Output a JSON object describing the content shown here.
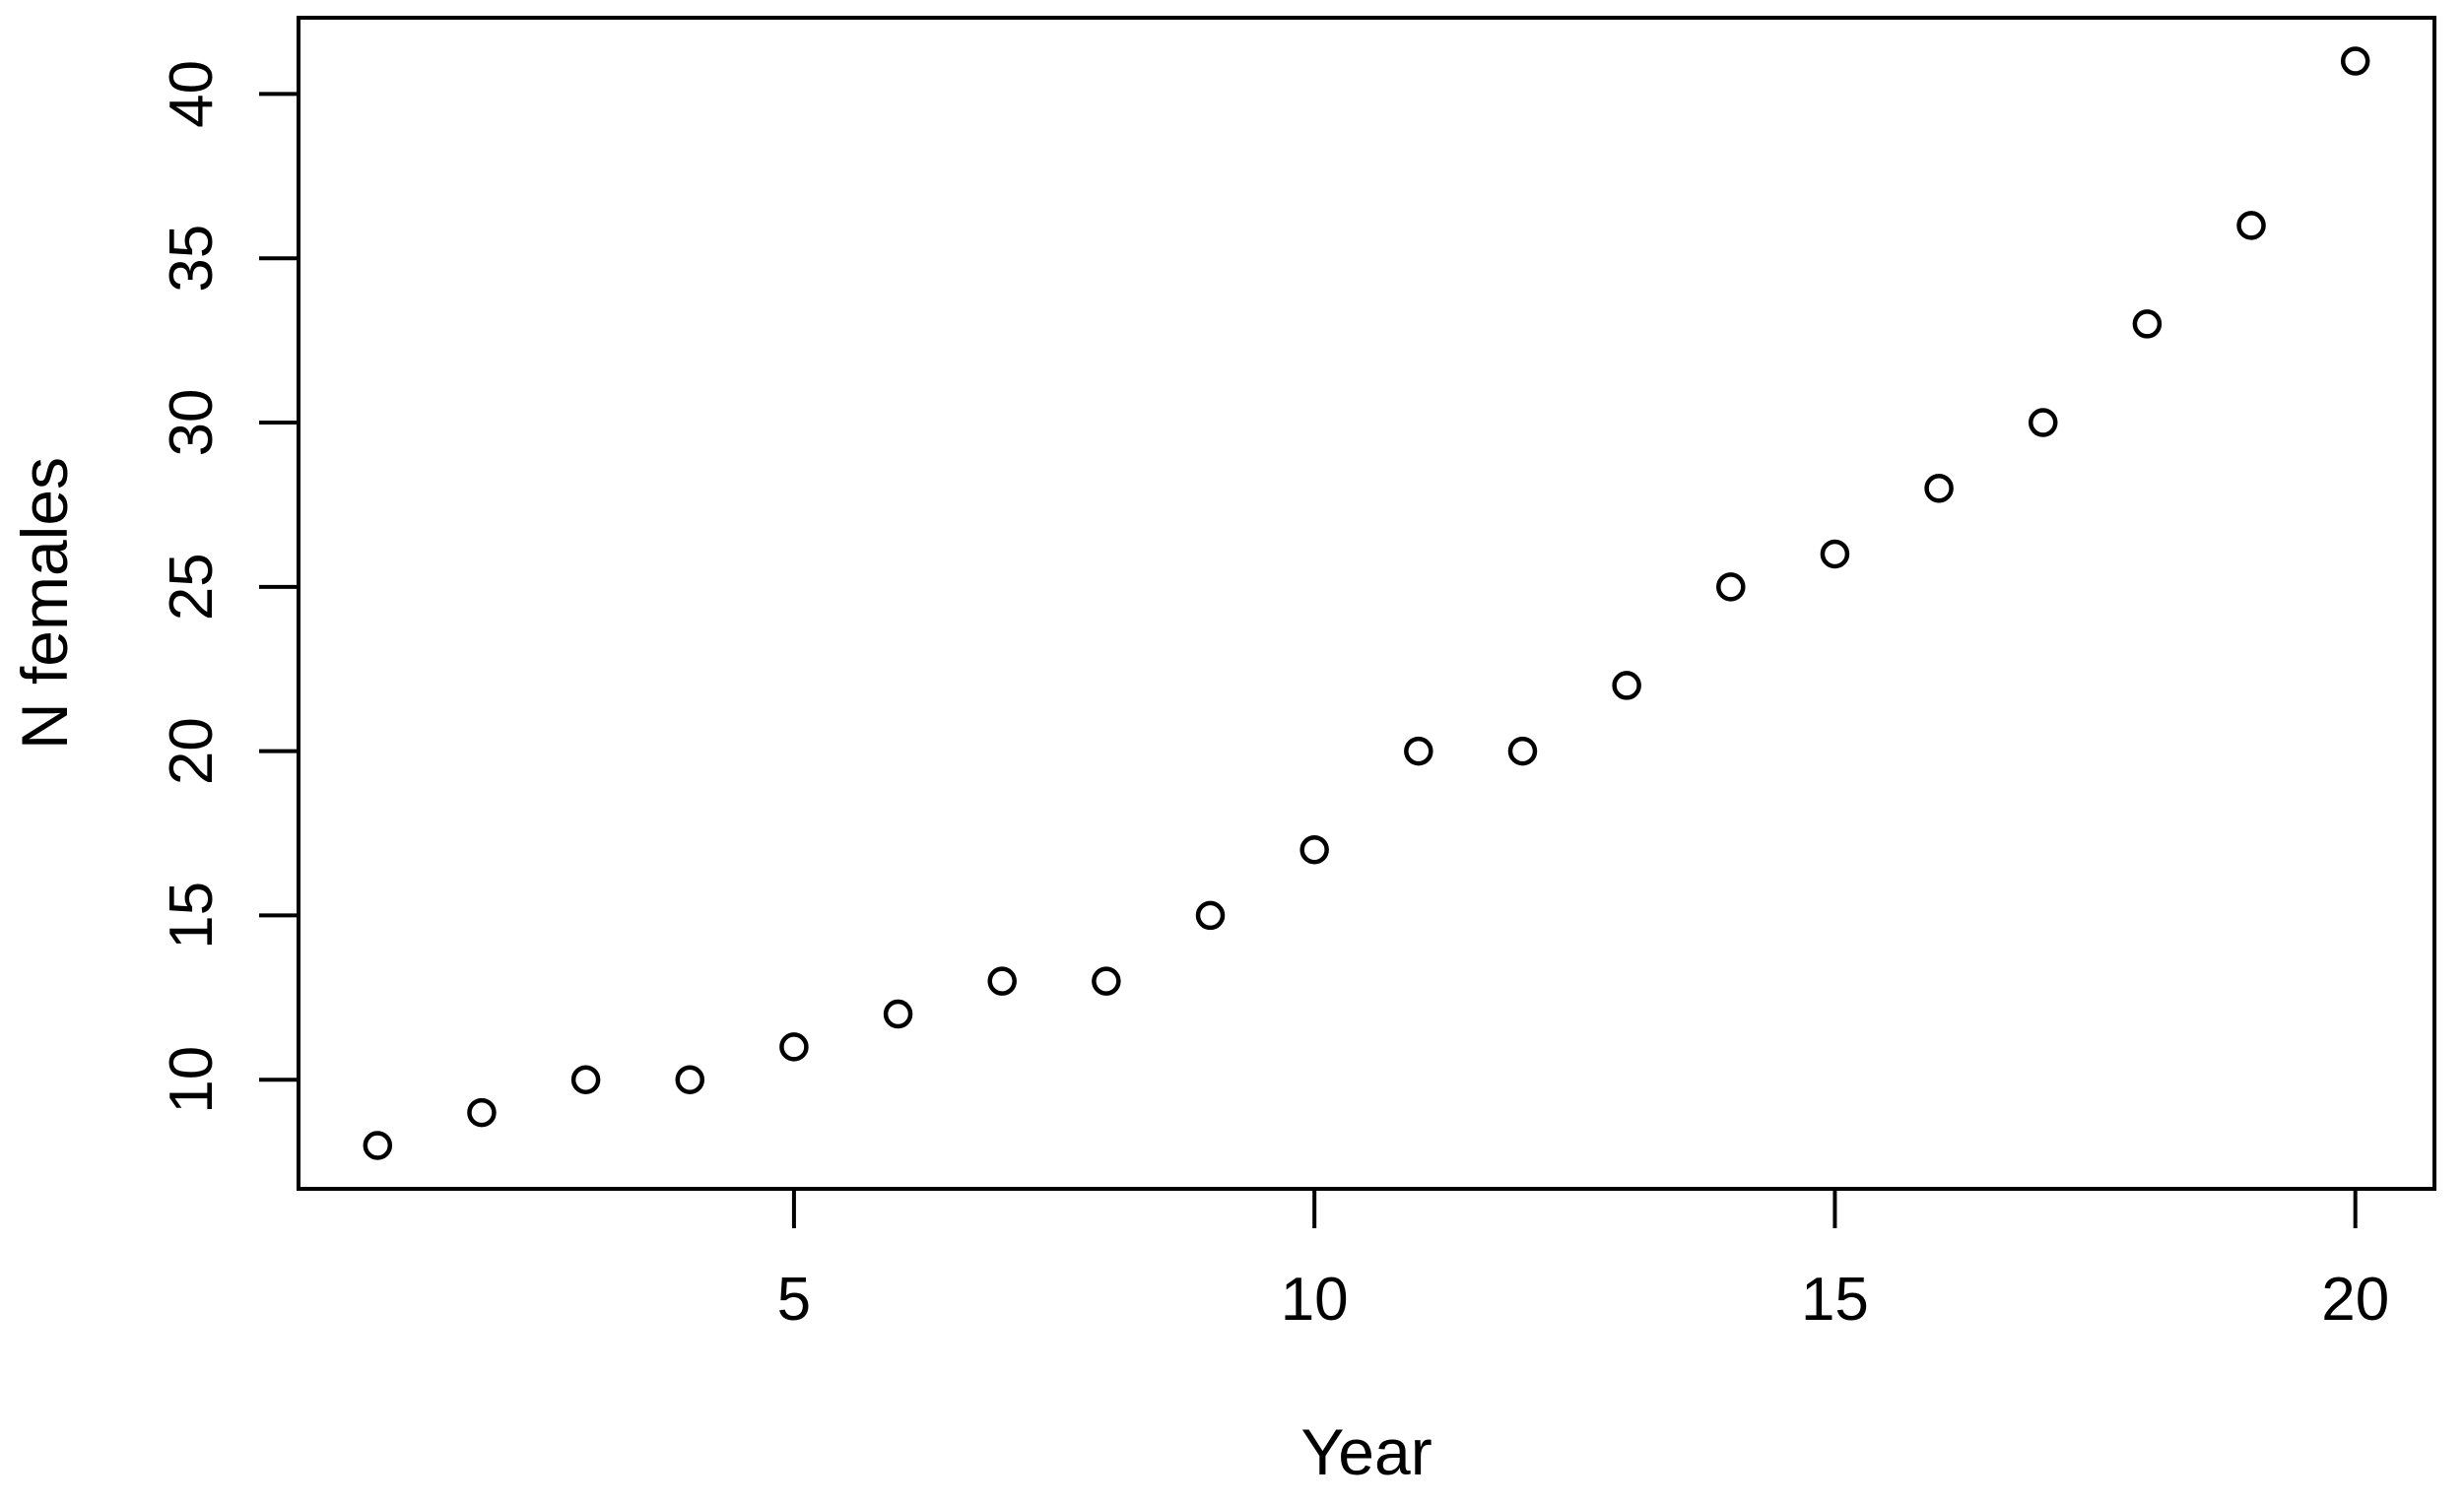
{
  "chart_data": {
    "type": "scatter",
    "title": "",
    "xlabel": "Year",
    "ylabel": "N females",
    "x": [
      1,
      2,
      3,
      4,
      5,
      6,
      7,
      8,
      9,
      10,
      11,
      12,
      13,
      14,
      15,
      16,
      17,
      18,
      19,
      20
    ],
    "y": [
      8,
      9,
      10,
      10,
      11,
      12,
      13,
      13,
      15,
      17,
      20,
      20,
      22,
      25,
      26,
      28,
      30,
      33,
      36,
      41
    ],
    "series_name": "N females by year",
    "x_ticks": [
      5,
      10,
      15,
      20
    ],
    "x_tick_labels": [
      "5",
      "10",
      "15",
      "20"
    ],
    "y_ticks": [
      10,
      15,
      20,
      25,
      30,
      35,
      40
    ],
    "y_tick_labels": [
      "10",
      "15",
      "20",
      "25",
      "30",
      "35",
      "40"
    ],
    "xlim": [
      0.24,
      20.76
    ],
    "ylim": [
      6.68,
      42.32
    ],
    "marker": "open-circle",
    "grid": false,
    "legend": "none",
    "colors": {
      "foreground": "#000000",
      "background": "#ffffff"
    }
  }
}
